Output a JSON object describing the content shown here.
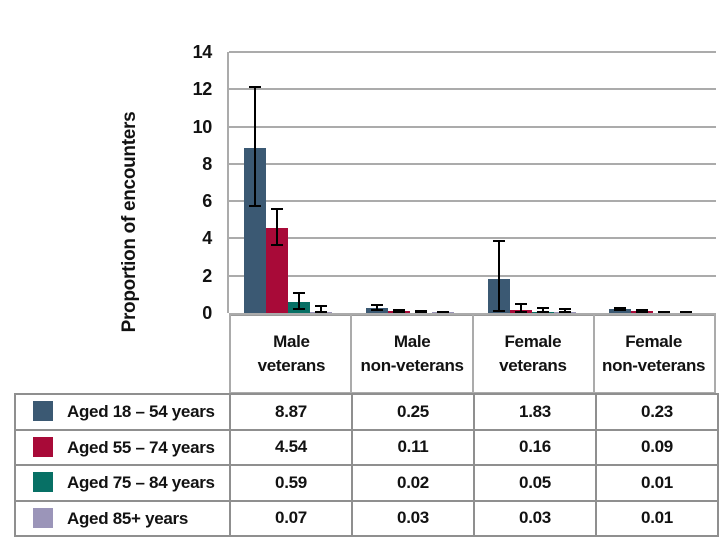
{
  "chart_data": {
    "type": "bar",
    "title": "",
    "xlabel": "",
    "ylabel": "Proportion of encounters",
    "ylim": [
      0,
      14
    ],
    "yticks": [
      0,
      2,
      4,
      6,
      8,
      10,
      12,
      14
    ],
    "grid": true,
    "legend_position": "table-below-chart-left-column",
    "error_bars": true,
    "categories": [
      "Male veterans",
      "Male non-veterans",
      "Female veterans",
      "Female non-veterans"
    ],
    "category_display": [
      [
        "Male",
        "veterans"
      ],
      [
        "Male",
        "non-veterans"
      ],
      [
        "Female",
        "veterans"
      ],
      [
        "Female",
        "non-veterans"
      ]
    ],
    "series": [
      {
        "name": "Aged 18 – 54 years",
        "color": "#3b5973",
        "values": [
          8.87,
          0.25,
          1.83,
          0.23
        ],
        "display": [
          "8.87",
          "0.25",
          "1.83",
          "0.23"
        ],
        "err_low": [
          5.7,
          0.1,
          0.05,
          0.13
        ],
        "err_high": [
          12.2,
          0.48,
          3.9,
          0.33
        ]
      },
      {
        "name": "Aged 55 – 74 years",
        "color": "#a80a38",
        "values": [
          4.54,
          0.11,
          0.16,
          0.09
        ],
        "display": [
          "4.54",
          "0.11",
          "0.16",
          "0.09"
        ],
        "err_low": [
          3.6,
          0.02,
          0.02,
          0.02
        ],
        "err_high": [
          5.65,
          0.2,
          0.55,
          0.2
        ]
      },
      {
        "name": "Aged 75 – 84 years",
        "color": "#077065",
        "values": [
          0.59,
          0.02,
          0.05,
          0.01
        ],
        "display": [
          "0.59",
          "0.02",
          "0.05",
          "0.01"
        ],
        "err_low": [
          0.15,
          0.0,
          0.0,
          0.0
        ],
        "err_high": [
          1.1,
          0.15,
          0.3,
          0.12
        ]
      },
      {
        "name": "Aged 85+ years",
        "color": "#9b95b9",
        "values": [
          0.07,
          0.03,
          0.03,
          0.01
        ],
        "display": [
          "0.07",
          "0.03",
          "0.03",
          "0.01"
        ],
        "err_low": [
          0.0,
          0.0,
          0.0,
          0.0
        ],
        "err_high": [
          0.45,
          0.1,
          0.28,
          0.12
        ]
      }
    ]
  },
  "colors": {
    "gridline": "#ababab",
    "axis": "#9a9a9a",
    "error_bar": "#000000",
    "table_border": "#8f8f8f",
    "text": "#121212"
  }
}
